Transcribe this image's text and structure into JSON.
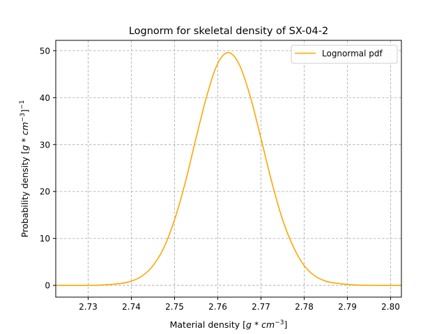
{
  "chart_data": {
    "type": "line",
    "title": "Lognorm for skeletal density of SX-04-2",
    "xlabel_main": "Material density ",
    "xlabel_unit_open": "[",
    "xlabel_unit_body": "g * cm",
    "xlabel_unit_exp": "−3",
    "xlabel_unit_close": "]",
    "ylabel_main": "Probability density ",
    "ylabel_unit_open": "[",
    "ylabel_unit_body": "g * cm",
    "ylabel_unit_exp": "−3",
    "ylabel_unit_close": "]",
    "ylabel_unit_exp2": "−1",
    "xlim": [
      2.7225,
      2.8025
    ],
    "ylim": [
      -2.5,
      52.2
    ],
    "xticks": [
      2.73,
      2.74,
      2.75,
      2.76,
      2.77,
      2.78,
      2.79,
      2.8
    ],
    "xtick_labels": [
      "2.73",
      "2.74",
      "2.75",
      "2.76",
      "2.77",
      "2.78",
      "2.79",
      "2.80"
    ],
    "yticks": [
      0,
      10,
      20,
      30,
      40,
      50
    ],
    "ytick_labels": [
      "0",
      "10",
      "20",
      "30",
      "40",
      "50"
    ],
    "grid": true,
    "legend_position": "top-right",
    "series": [
      {
        "name": "Lognormal pdf",
        "color": "#ffa500",
        "x": [
          2.7225,
          2.725,
          2.7275,
          2.73,
          2.7325,
          2.735,
          2.7375,
          2.74,
          2.7425,
          2.745,
          2.7475,
          2.75,
          2.7525,
          2.755,
          2.7575,
          2.76,
          2.7625,
          2.765,
          2.7675,
          2.77,
          2.7725,
          2.775,
          2.7775,
          2.78,
          2.7825,
          2.785,
          2.7875,
          2.79,
          2.7925,
          2.795,
          2.7975,
          2.8,
          2.8025
        ],
        "y": [
          0.0,
          0.0,
          0.0,
          0.0,
          0.05,
          0.2,
          0.4,
          0.9,
          2.0,
          4.2,
          8.0,
          14.0,
          22.0,
          31.5,
          40.5,
          47.3,
          49.6,
          47.0,
          40.3,
          31.3,
          22.0,
          14.0,
          8.2,
          4.2,
          2.0,
          0.9,
          0.45,
          0.2,
          0.07,
          0.02,
          0.0,
          0.0,
          0.0
        ]
      }
    ]
  }
}
